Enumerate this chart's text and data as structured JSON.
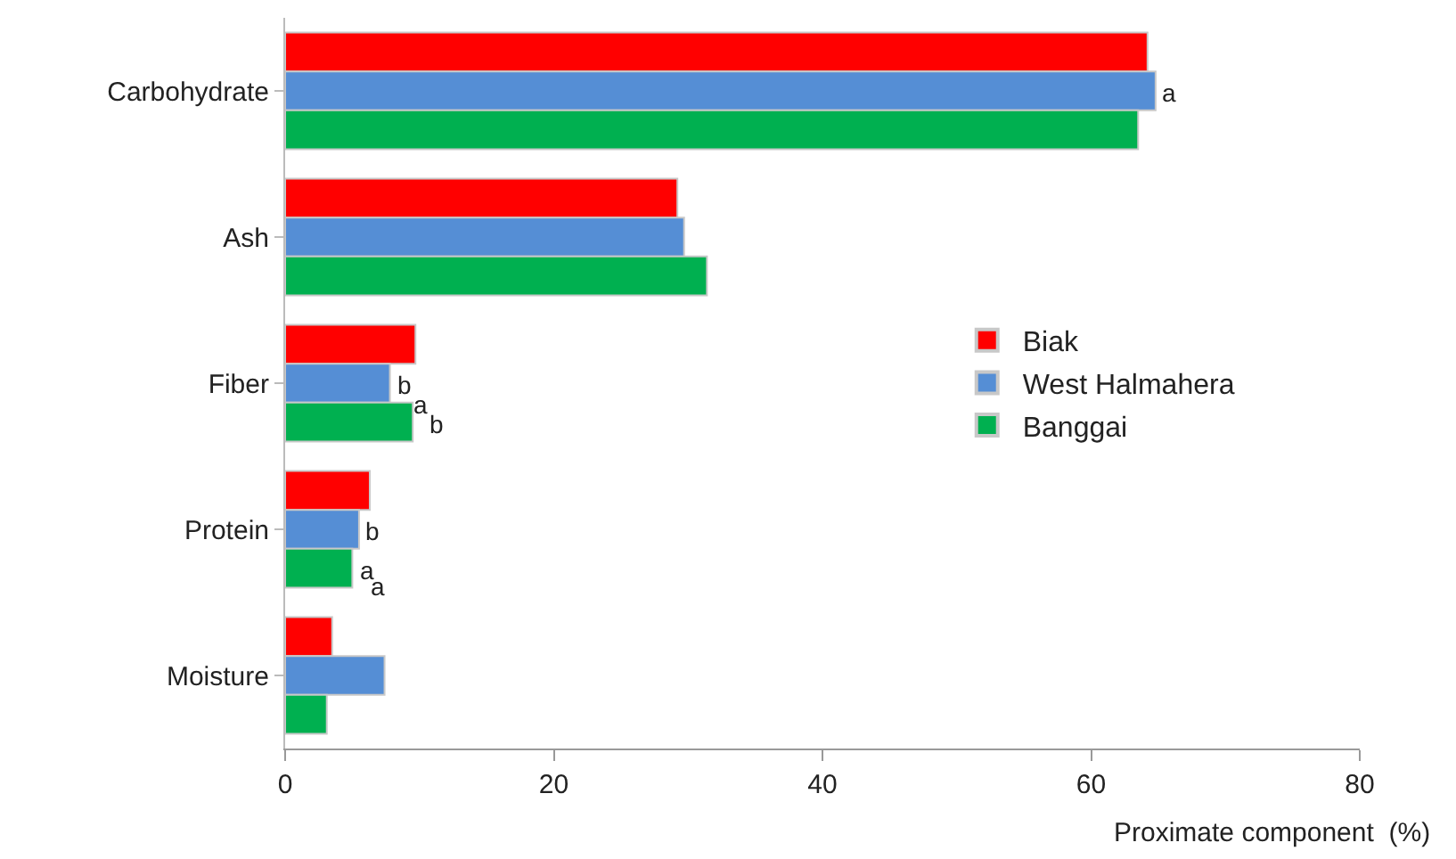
{
  "chart_data": {
    "type": "bar",
    "orientation": "horizontal",
    "xlabel": "Proximate component  (%)",
    "categories": [
      "Carbohydrate",
      "Ash",
      "Fiber",
      "Protein",
      "Moisture"
    ],
    "series": [
      {
        "name": "Biak",
        "color": "#ff0000",
        "values": [
          64.2,
          29.2,
          9.7,
          6.3,
          3.5
        ]
      },
      {
        "name": "West Halmahera",
        "color": "#558ed5",
        "values": [
          64.8,
          29.7,
          7.8,
          5.5,
          7.4
        ]
      },
      {
        "name": "Banggai",
        "color": "#00b050",
        "values": [
          63.5,
          31.4,
          9.5,
          5.0,
          3.1
        ]
      }
    ],
    "annotations": [
      {
        "text": "a",
        "x": 64.8,
        "y": "Carbohydrate"
      },
      {
        "text": "b",
        "x": 7.8,
        "y": "Fiber"
      },
      "a",
      "b",
      {
        "text": "b",
        "x": 5.5,
        "y": "Protein"
      },
      {
        "text": "a",
        "x": 5.0,
        "y": "Protein"
      },
      {
        "text": "a",
        "x": 5.0,
        "y": "Protein"
      }
    ],
    "xlim": [
      0,
      80
    ],
    "xticks": [
      0,
      20,
      40,
      60,
      80
    ],
    "grid": false,
    "legend": "right"
  }
}
